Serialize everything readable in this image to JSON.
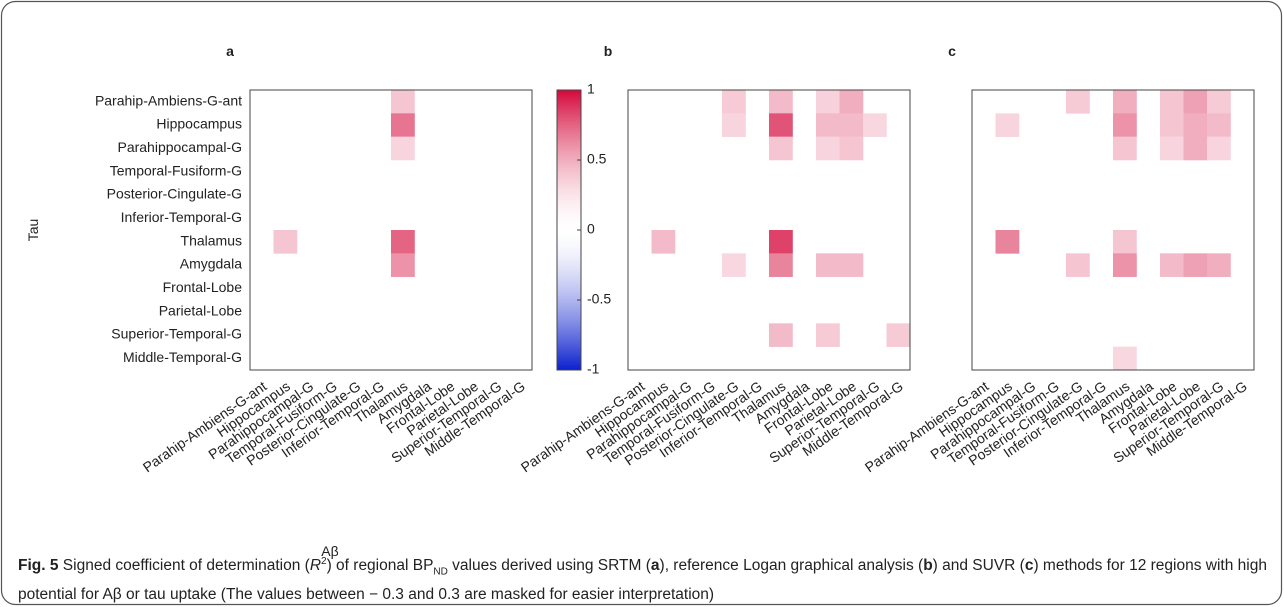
{
  "chart_data": [
    {
      "type": "heatmap",
      "title": "a",
      "xlabel": "Aβ",
      "ylabel": "Tau",
      "x": [
        "Parahip-Ambiens-G-ant",
        "Hippocampus",
        "Parahippocampal-G",
        "Temporal-Fusiform-G",
        "Posterior-Cingulate-G",
        "Inferior-Temporal-G",
        "Thalamus",
        "Amygdala",
        "Frontal-Lobe",
        "Parietal-Lobe",
        "Superior-Temporal-G",
        "Middle-Temporal-G"
      ],
      "y": [
        "Parahip-Ambiens-G-ant",
        "Hippocampus",
        "Parahippocampal-G",
        "Temporal-Fusiform-G",
        "Posterior-Cingulate-G",
        "Inferior-Temporal-G",
        "Thalamus",
        "Amygdala",
        "Frontal-Lobe",
        "Parietal-Lobe",
        "Superior-Temporal-G",
        "Middle-Temporal-G"
      ],
      "values": [
        [
          null,
          null,
          null,
          null,
          null,
          null,
          0.4,
          null,
          null,
          null,
          null,
          null
        ],
        [
          null,
          null,
          null,
          null,
          null,
          null,
          0.7,
          null,
          null,
          null,
          null,
          null
        ],
        [
          null,
          null,
          null,
          null,
          null,
          null,
          0.33,
          null,
          null,
          null,
          null,
          null
        ],
        [
          null,
          null,
          null,
          null,
          null,
          null,
          null,
          null,
          null,
          null,
          null,
          null
        ],
        [
          null,
          null,
          null,
          null,
          null,
          null,
          null,
          null,
          null,
          null,
          null,
          null
        ],
        [
          null,
          null,
          null,
          null,
          null,
          null,
          null,
          null,
          null,
          null,
          null,
          null
        ],
        [
          null,
          0.4,
          null,
          null,
          null,
          null,
          0.75,
          null,
          null,
          null,
          null,
          null
        ],
        [
          null,
          null,
          null,
          null,
          null,
          null,
          0.6,
          null,
          null,
          null,
          null,
          null
        ],
        [
          null,
          null,
          null,
          null,
          null,
          null,
          null,
          null,
          null,
          null,
          null,
          null
        ],
        [
          null,
          null,
          null,
          null,
          null,
          null,
          null,
          null,
          null,
          null,
          null,
          null
        ],
        [
          null,
          null,
          null,
          null,
          null,
          null,
          null,
          null,
          null,
          null,
          null,
          null
        ],
        [
          null,
          null,
          null,
          null,
          null,
          null,
          null,
          null,
          null,
          null,
          null,
          null
        ]
      ],
      "colorbar": {
        "zlim": [
          -1,
          1
        ],
        "zticks": [
          -1,
          -0.5,
          0,
          0.5,
          1
        ],
        "colors": [
          "#0a1fcc",
          "#ffffff",
          "#d40a3c"
        ]
      }
    },
    {
      "type": "heatmap",
      "title": "b",
      "x": [
        "Parahip-Ambiens-G-ant",
        "Hippocampus",
        "Parahippocampal-G",
        "Temporal-Fusiform-G",
        "Posterior-Cingulate-G",
        "Inferior-Temporal-G",
        "Thalamus",
        "Amygdala",
        "Frontal-Lobe",
        "Parietal-Lobe",
        "Superior-Temporal-G",
        "Middle-Temporal-G"
      ],
      "values": [
        [
          null,
          null,
          null,
          null,
          0.38,
          null,
          0.45,
          null,
          0.35,
          0.5,
          null,
          null
        ],
        [
          null,
          null,
          null,
          null,
          0.33,
          null,
          0.8,
          null,
          0.45,
          0.45,
          0.32,
          null
        ],
        [
          null,
          null,
          null,
          null,
          null,
          null,
          0.4,
          null,
          0.33,
          0.4,
          null,
          null
        ],
        [
          null,
          null,
          null,
          null,
          null,
          null,
          null,
          null,
          null,
          null,
          null,
          null
        ],
        [
          null,
          null,
          null,
          null,
          null,
          null,
          null,
          null,
          null,
          null,
          null,
          null
        ],
        [
          null,
          null,
          null,
          null,
          null,
          null,
          null,
          null,
          null,
          null,
          null,
          null
        ],
        [
          null,
          0.45,
          null,
          null,
          null,
          null,
          0.85,
          null,
          null,
          null,
          null,
          null
        ],
        [
          null,
          null,
          null,
          null,
          0.32,
          null,
          0.65,
          null,
          0.45,
          0.45,
          null,
          null
        ],
        [
          null,
          null,
          null,
          null,
          null,
          null,
          null,
          null,
          null,
          null,
          null,
          null
        ],
        [
          null,
          null,
          null,
          null,
          null,
          null,
          null,
          null,
          null,
          null,
          null,
          null
        ],
        [
          null,
          null,
          null,
          null,
          null,
          null,
          0.45,
          null,
          0.38,
          null,
          null,
          0.38
        ],
        [
          null,
          null,
          null,
          null,
          null,
          null,
          null,
          null,
          null,
          null,
          null,
          null
        ]
      ]
    },
    {
      "type": "heatmap",
      "title": "c",
      "x": [
        "Parahip-Ambiens-G-ant",
        "Hippocampus",
        "Parahippocampal-G",
        "Temporal-Fusiform-G",
        "Posterior-Cingulate-G",
        "Inferior-Temporal-G",
        "Thalamus",
        "Amygdala",
        "Frontal-Lobe",
        "Parietal-Lobe",
        "Superior-Temporal-G",
        "Middle-Temporal-G"
      ],
      "values": [
        [
          null,
          null,
          null,
          null,
          0.38,
          null,
          0.5,
          null,
          0.4,
          0.55,
          0.38,
          null
        ],
        [
          null,
          0.33,
          null,
          null,
          null,
          null,
          0.6,
          null,
          0.4,
          0.5,
          0.45,
          null
        ],
        [
          null,
          null,
          null,
          null,
          null,
          null,
          0.4,
          null,
          0.33,
          0.5,
          0.33,
          null
        ],
        [
          null,
          null,
          null,
          null,
          null,
          null,
          null,
          null,
          null,
          null,
          null,
          null
        ],
        [
          null,
          null,
          null,
          null,
          null,
          null,
          null,
          null,
          null,
          null,
          null,
          null
        ],
        [
          null,
          null,
          null,
          null,
          null,
          null,
          null,
          null,
          null,
          null,
          null,
          null
        ],
        [
          null,
          0.65,
          null,
          null,
          null,
          null,
          0.4,
          null,
          null,
          null,
          null,
          null
        ],
        [
          null,
          null,
          null,
          null,
          0.4,
          null,
          0.6,
          null,
          0.45,
          0.55,
          0.5,
          null
        ],
        [
          null,
          null,
          null,
          null,
          null,
          null,
          null,
          null,
          null,
          null,
          null,
          null
        ],
        [
          null,
          null,
          null,
          null,
          null,
          null,
          null,
          null,
          null,
          null,
          null,
          null
        ],
        [
          null,
          null,
          null,
          null,
          null,
          null,
          null,
          null,
          null,
          null,
          null,
          null
        ],
        [
          null,
          null,
          null,
          null,
          null,
          null,
          0.32,
          null,
          null,
          null,
          null,
          null
        ]
      ]
    }
  ],
  "caption": {
    "label": "Fig. 5",
    "parts": [
      "Signed coefficient of determination (",
      "R",
      "2",
      ") of regional BP",
      "ND",
      " values derived using SRTM (",
      "a",
      "), reference Logan graphical analysis (",
      "b",
      ") and SUVR (",
      "c",
      ") methods for 12 regions with high potential for Aβ or tau uptake (The values between − 0.3 and 0.3 are masked for easier interpretation)"
    ]
  }
}
